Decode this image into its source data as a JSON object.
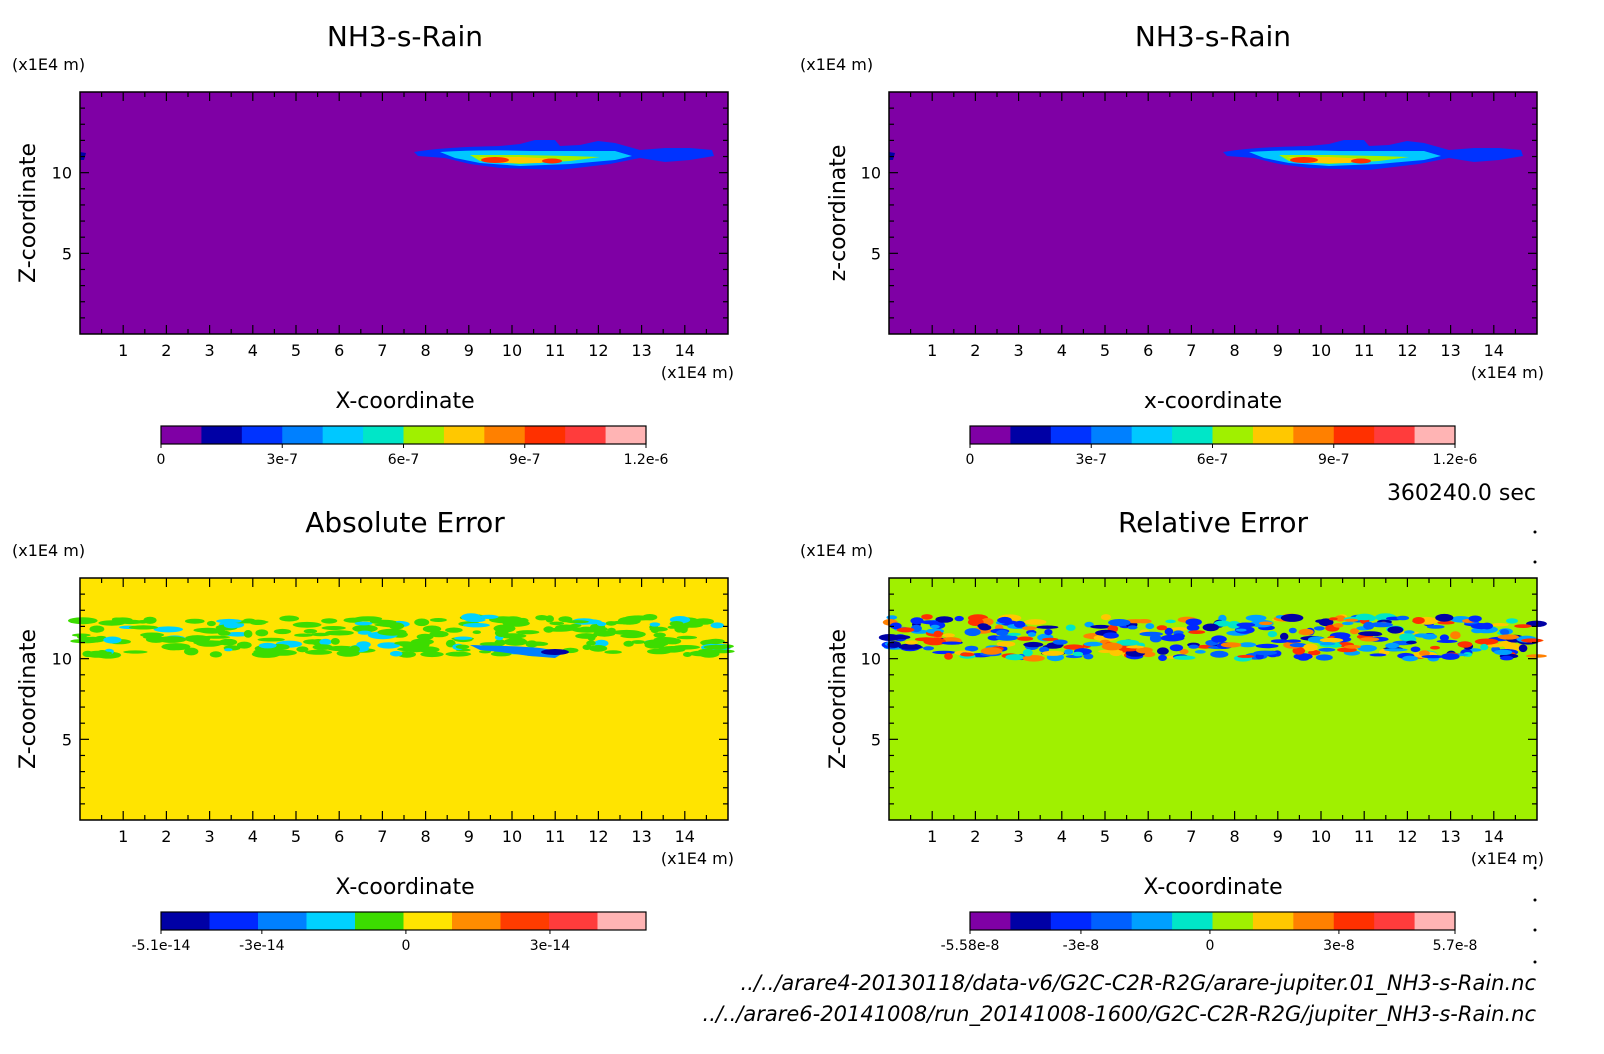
{
  "time_label": "360240.0 sec",
  "file_paths": [
    "../../arare4-20130118/data-v6/G2C-C2R-R2G/arare-jupiter.01_NH3-s-Rain.nc",
    "../../arare6-20141008/run_20141008-1600/G2C-C2R-R2G/jupiter_NH3-s-Rain.nc"
  ],
  "chart_data": [
    {
      "type": "heatmap",
      "title": "NH3-s-Rain",
      "xlabel": "X-coordinate",
      "ylabel": "Z-coordinate",
      "x_unit": "(x1E4 m)",
      "y_unit": "(x1E4 m)",
      "x_ticks": [
        1,
        2,
        3,
        4,
        5,
        6,
        7,
        8,
        9,
        10,
        11,
        12,
        13,
        14
      ],
      "y_ticks": [
        5,
        10
      ],
      "xlim": [
        0,
        15
      ],
      "ylim": [
        0,
        15
      ],
      "background_color": "#7f00a5",
      "features": [
        {
          "x": [
            7.8,
            15
          ],
          "z": [
            10.2,
            12.0
          ],
          "peak_x": 10.1,
          "peak_z": 10.6,
          "peak_value": 9.6e-07
        },
        {
          "x": [
            0,
            0.2
          ],
          "z": [
            10.8,
            11.3
          ],
          "peak_value": 1e-07
        }
      ],
      "colorbar": {
        "colors": [
          "#7f00a5",
          "#0000a5",
          "#0033ff",
          "#0080ff",
          "#00c8ff",
          "#00e6c8",
          "#a0f000",
          "#ffc800",
          "#ff8000",
          "#ff3000",
          "#ff3c3c",
          "#ffb4b4"
        ],
        "tick_labels": [
          "0",
          "3e-7",
          "6e-7",
          "9e-7",
          "1.2e-6"
        ],
        "tick_values": [
          0,
          3e-07,
          6e-07,
          9e-07,
          1.2e-06
        ],
        "range": [
          0,
          1.2e-06
        ]
      }
    },
    {
      "type": "heatmap",
      "title": "NH3-s-Rain",
      "xlabel": "x-coordinate",
      "ylabel": "z-coordinate",
      "x_unit": "(x1E4 m)",
      "y_unit": "(x1E4 m)",
      "x_ticks": [
        1,
        2,
        3,
        4,
        5,
        6,
        7,
        8,
        9,
        10,
        11,
        12,
        13,
        14
      ],
      "y_ticks": [
        5,
        10
      ],
      "xlim": [
        0,
        15
      ],
      "ylim": [
        0,
        15
      ],
      "background_color": "#7f00a5",
      "features": [
        {
          "x": [
            7.8,
            15
          ],
          "z": [
            10.2,
            12.0
          ],
          "peak_x": 10.1,
          "peak_z": 10.6,
          "peak_value": 9.6e-07
        },
        {
          "x": [
            0,
            0.2
          ],
          "z": [
            10.8,
            11.3
          ],
          "peak_value": 1e-07
        }
      ],
      "colorbar": {
        "colors": [
          "#7f00a5",
          "#0000a5",
          "#0033ff",
          "#0080ff",
          "#00c8ff",
          "#00e6c8",
          "#a0f000",
          "#ffc800",
          "#ff8000",
          "#ff3000",
          "#ff3c3c",
          "#ffb4b4"
        ],
        "tick_labels": [
          "0",
          "3e-7",
          "6e-7",
          "9e-7",
          "1.2e-6"
        ],
        "tick_values": [
          0,
          3e-07,
          6e-07,
          9e-07,
          1.2e-06
        ],
        "range": [
          0,
          1.2e-06
        ]
      }
    },
    {
      "type": "heatmap",
      "title": "Absolute Error",
      "xlabel": "X-coordinate",
      "ylabel": "Z-coordinate",
      "x_unit": "(x1E4 m)",
      "y_unit": "(x1E4 m)",
      "x_ticks": [
        1,
        2,
        3,
        4,
        5,
        6,
        7,
        8,
        9,
        10,
        11,
        12,
        13,
        14
      ],
      "y_ticks": [
        5,
        10
      ],
      "xlim": [
        0,
        15
      ],
      "ylim": [
        0,
        15
      ],
      "background_color": "#ffe400",
      "features": [
        {
          "x": [
            0,
            15
          ],
          "z": [
            10.2,
            12.6
          ],
          "value": -1e-14
        },
        {
          "x": [
            10.2,
            11.6
          ],
          "z": [
            10.1,
            10.7
          ],
          "value": -4e-14
        }
      ],
      "colorbar": {
        "colors": [
          "#0000a5",
          "#0028ff",
          "#0080ff",
          "#00d2ff",
          "#3cdc00",
          "#ffe400",
          "#ff8c00",
          "#ff3c00",
          "#ff3c3c",
          "#ffb4b4"
        ],
        "tick_labels": [
          "-5.1e-14",
          "-3e-14",
          "0",
          "3e-14"
        ],
        "tick_values": [
          -5.1e-14,
          -3e-14,
          0,
          3e-14
        ],
        "range": [
          -5.1e-14,
          5e-14
        ]
      }
    },
    {
      "type": "heatmap",
      "title": "Relative Error",
      "xlabel": "X-coordinate",
      "ylabel": "Z-coordinate",
      "x_unit": "(x1E4 m)",
      "y_unit": "(x1E4 m)",
      "x_ticks": [
        1,
        2,
        3,
        4,
        5,
        6,
        7,
        8,
        9,
        10,
        11,
        12,
        13,
        14
      ],
      "y_ticks": [
        5,
        10
      ],
      "xlim": [
        0,
        15
      ],
      "ylim": [
        0,
        15
      ],
      "background_color": "#a0f000",
      "features": [
        {
          "x": [
            0,
            15
          ],
          "z": [
            10.0,
            12.6
          ],
          "value": "mixed -5.58e-8 to 5.7e-8"
        }
      ],
      "colorbar": {
        "colors": [
          "#7f00a5",
          "#0000a5",
          "#0028ff",
          "#0060ff",
          "#00a0ff",
          "#00e6c8",
          "#a0f000",
          "#ffc800",
          "#ff8000",
          "#ff3000",
          "#ff3c3c",
          "#ffb4b4"
        ],
        "tick_labels": [
          "-5.58e-8",
          "-3e-8",
          "0",
          "3e-8",
          "5.7e-8"
        ],
        "tick_values": [
          -5.58e-08,
          -3e-08,
          0,
          3e-08,
          5.7e-08
        ],
        "range": [
          -5.58e-08,
          5.7e-08
        ]
      }
    }
  ]
}
